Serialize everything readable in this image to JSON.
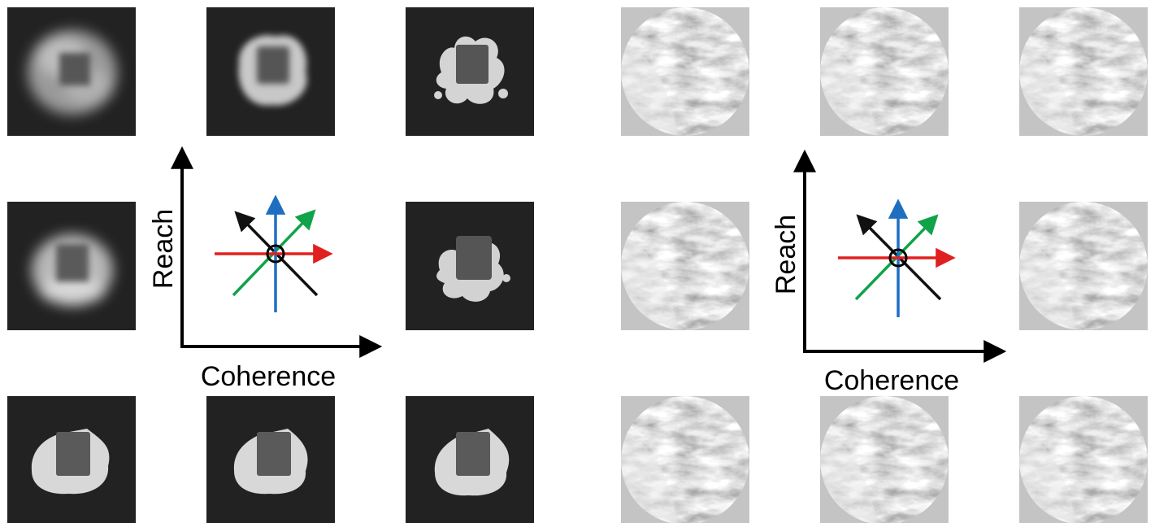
{
  "diagrams": [
    {
      "name": "left-panel",
      "x_axis_label": "Coherence",
      "y_axis_label": "Reach",
      "image_style": "dark-background-blob",
      "thumbnails": [
        {
          "grid": "top-left",
          "pattern": "diffuse-cloud"
        },
        {
          "grid": "top-center",
          "pattern": "cloud-with-hole"
        },
        {
          "grid": "top-right",
          "pattern": "fragmented-blobs"
        },
        {
          "grid": "middle-left",
          "pattern": "diffuse-ring"
        },
        {
          "grid": "middle-right",
          "pattern": "smooth-blobs"
        },
        {
          "grid": "bottom-left",
          "pattern": "square-with-smooth-wrap"
        },
        {
          "grid": "bottom-center",
          "pattern": "square-with-smooth-wrap"
        },
        {
          "grid": "bottom-right",
          "pattern": "square-with-smooth-wrap"
        }
      ]
    },
    {
      "name": "right-panel",
      "x_axis_label": "Coherence",
      "y_axis_label": "Reach",
      "image_style": "grey-circular-texture",
      "thumbnails": [
        {
          "grid": "top-left",
          "pattern": "circular-texture"
        },
        {
          "grid": "top-center",
          "pattern": "circular-texture"
        },
        {
          "grid": "top-right",
          "pattern": "circular-texture"
        },
        {
          "grid": "middle-left",
          "pattern": "circular-texture"
        },
        {
          "grid": "middle-right",
          "pattern": "circular-texture"
        },
        {
          "grid": "bottom-left",
          "pattern": "circular-texture"
        },
        {
          "grid": "bottom-center",
          "pattern": "circular-texture"
        },
        {
          "grid": "bottom-right",
          "pattern": "circular-texture"
        }
      ]
    }
  ],
  "direction_arrows": [
    {
      "name": "horizontal",
      "color": "#e02020"
    },
    {
      "name": "vertical",
      "color": "#1f6fc1"
    },
    {
      "name": "diagonal-up-right",
      "color": "#10a34a"
    },
    {
      "name": "diagonal-up-left",
      "color": "#111111"
    }
  ],
  "colors": {
    "dark_bg": "#222222",
    "light_bg": "#c4c4c4",
    "axis": "#000000",
    "origin_circle": "#000000"
  }
}
